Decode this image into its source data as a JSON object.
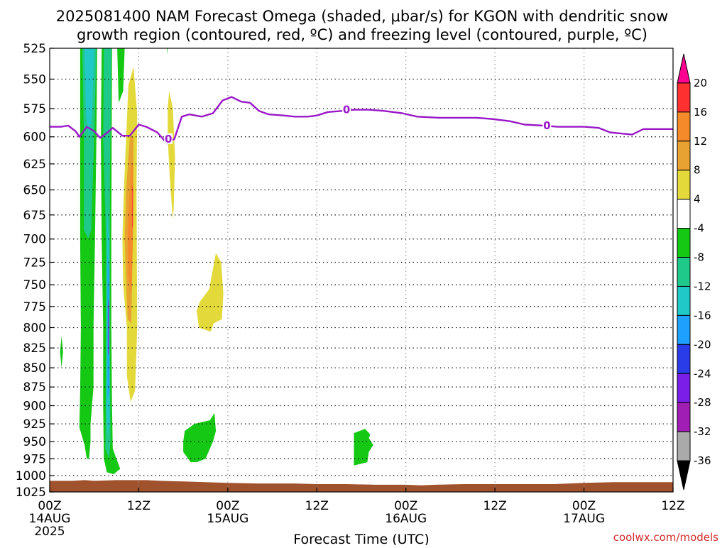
{
  "chart_data": {
    "type": "heatmap",
    "title": "2025081400 NAM Forecast Omega (shaded, μbar/s) for KGON with dendritic snow",
    "subtitle": "growth region (contoured, red, ºC) and freezing level (contoured, purple, ºC)",
    "xlabel": "Forecast Time (UTC)",
    "ylabel": "",
    "ylim": [
      1025,
      525
    ],
    "y_log": true,
    "grid": true,
    "x_hours_range": [
      0,
      84
    ],
    "x_ticks": [
      {
        "hour": 0,
        "label": "00Z",
        "date": "14AUG",
        "year": "2025"
      },
      {
        "hour": 12,
        "label": "12Z",
        "date": "",
        "year": ""
      },
      {
        "hour": 24,
        "label": "00Z",
        "date": "15AUG",
        "year": ""
      },
      {
        "hour": 36,
        "label": "12Z",
        "date": "",
        "year": ""
      },
      {
        "hour": 48,
        "label": "00Z",
        "date": "16AUG",
        "year": ""
      },
      {
        "hour": 60,
        "label": "12Z",
        "date": "",
        "year": ""
      },
      {
        "hour": 72,
        "label": "00Z",
        "date": "17AUG",
        "year": ""
      },
      {
        "hour": 84,
        "label": "12Z",
        "date": "",
        "year": ""
      }
    ],
    "y_ticks": [
      525,
      550,
      575,
      600,
      625,
      650,
      675,
      700,
      725,
      750,
      775,
      800,
      825,
      850,
      875,
      900,
      925,
      950,
      975,
      1000,
      1025
    ],
    "colorbar": {
      "levels": [
        20,
        16,
        12,
        8,
        4,
        -4,
        -8,
        -12,
        -16,
        -20,
        -24,
        -28,
        -32,
        -36
      ],
      "colors": [
        "#ff0090",
        "#ff3030",
        "#f58a2a",
        "#e8a232",
        "#e3d93a",
        "#ffffff",
        "#14c814",
        "#1fc98a",
        "#20c8c8",
        "#1ea0ff",
        "#2a3ce8",
        "#7a1ee8",
        "#a01eb4",
        "#aaaaaa",
        "#000000"
      ]
    },
    "freezing_level": {
      "label": "0",
      "color": "#9a18c8",
      "points": [
        [
          0,
          591
        ],
        [
          1.5,
          591
        ],
        [
          2.5,
          590
        ],
        [
          3.5,
          595
        ],
        [
          4,
          600
        ],
        [
          5,
          591
        ],
        [
          6,
          595
        ],
        [
          6.8,
          601
        ],
        [
          7.8,
          596
        ],
        [
          8.5,
          592
        ],
        [
          9.8,
          599
        ],
        [
          10.8,
          599
        ],
        [
          12,
          589
        ],
        [
          13,
          591
        ],
        [
          14.5,
          596
        ],
        [
          15.8,
          606
        ],
        [
          16.8,
          602
        ],
        [
          17.8,
          582
        ],
        [
          18.8,
          580
        ],
        [
          20.5,
          582
        ],
        [
          22,
          579
        ],
        [
          23.3,
          568
        ],
        [
          24.5,
          565
        ],
        [
          25.8,
          569
        ],
        [
          27,
          570
        ],
        [
          28.2,
          577
        ],
        [
          29.5,
          580
        ],
        [
          31.5,
          581
        ],
        [
          33,
          582
        ],
        [
          34.8,
          582
        ],
        [
          36,
          581
        ],
        [
          37.5,
          578
        ],
        [
          39.5,
          577
        ],
        [
          41,
          576
        ],
        [
          43,
          576
        ],
        [
          45,
          577
        ],
        [
          47.5,
          579
        ],
        [
          49.5,
          582
        ],
        [
          52.5,
          583
        ],
        [
          55,
          583
        ],
        [
          57.5,
          583
        ],
        [
          59.5,
          584
        ],
        [
          62,
          586
        ],
        [
          64,
          589
        ],
        [
          66.5,
          590
        ],
        [
          68.5,
          591
        ],
        [
          70.5,
          591
        ],
        [
          72,
          591
        ],
        [
          74,
          592
        ],
        [
          75.5,
          596
        ],
        [
          77,
          597
        ],
        [
          78.5,
          598
        ],
        [
          80,
          593
        ],
        [
          82,
          593
        ],
        [
          84,
          593
        ]
      ]
    },
    "regions": [
      {
        "level": -8,
        "color": "#14c814",
        "points": [
          [
            4.1,
            525
          ],
          [
            6.4,
            525
          ],
          [
            6.3,
            600
          ],
          [
            6.1,
            700
          ],
          [
            5.9,
            800
          ],
          [
            5.9,
            875
          ],
          [
            5.5,
            925
          ],
          [
            5.5,
            950
          ],
          [
            5.3,
            975
          ],
          [
            5.0,
            975
          ],
          [
            4.7,
            955
          ],
          [
            4.0,
            930
          ],
          [
            4.1,
            880
          ],
          [
            4.2,
            800
          ],
          [
            4.1,
            700
          ],
          [
            4.1,
            600
          ]
        ]
      },
      {
        "level": -12,
        "color": "#1fc98a",
        "points": [
          [
            4.4,
            525
          ],
          [
            6.3,
            525
          ],
          [
            6.0,
            600
          ],
          [
            5.6,
            690
          ],
          [
            5.2,
            700
          ],
          [
            4.6,
            690
          ],
          [
            4.6,
            600
          ]
        ]
      },
      {
        "level": -16,
        "color": "#20c8c8",
        "points": [
          [
            4.7,
            525
          ],
          [
            6.0,
            525
          ],
          [
            5.7,
            580
          ],
          [
            5.3,
            600
          ],
          [
            4.9,
            580
          ]
        ]
      },
      {
        "level": -8,
        "color": "#14c814",
        "points": [
          [
            7.0,
            525
          ],
          [
            8.4,
            525
          ],
          [
            8.3,
            700
          ],
          [
            8.3,
            800
          ],
          [
            8.4,
            900
          ],
          [
            8.5,
            960
          ],
          [
            9.5,
            990
          ],
          [
            8.6,
            998
          ],
          [
            7.7,
            995
          ],
          [
            7.3,
            975
          ],
          [
            7.2,
            900
          ],
          [
            7.2,
            800
          ],
          [
            7.0,
            700
          ],
          [
            6.9,
            600
          ]
        ]
      },
      {
        "level": -12,
        "color": "#1fc98a",
        "points": [
          [
            7.3,
            525
          ],
          [
            8.3,
            525
          ],
          [
            8.1,
            650
          ],
          [
            8.1,
            800
          ],
          [
            8.2,
            950
          ],
          [
            8.0,
            975
          ],
          [
            7.5,
            960
          ],
          [
            7.6,
            850
          ],
          [
            7.6,
            700
          ],
          [
            7.2,
            600
          ]
        ]
      },
      {
        "level": -16,
        "color": "#20c8c8",
        "points": [
          [
            7.7,
            670
          ],
          [
            8.0,
            700
          ],
          [
            8.0,
            800
          ],
          [
            8.1,
            925
          ],
          [
            7.8,
            940
          ],
          [
            7.6,
            900
          ],
          [
            7.7,
            800
          ]
        ]
      },
      {
        "level": -20,
        "color": "#1ea0ff",
        "points": [
          [
            7.8,
            715
          ],
          [
            8.0,
            740
          ],
          [
            8.0,
            880
          ],
          [
            7.8,
            890
          ],
          [
            7.8,
            800
          ]
        ]
      },
      {
        "level": -24,
        "color": "#7a1ee8",
        "points": [
          [
            7.85,
            765
          ],
          [
            7.95,
            775
          ],
          [
            7.95,
            830
          ],
          [
            7.85,
            835
          ]
        ]
      },
      {
        "level": -8,
        "color": "#14c814",
        "points": [
          [
            9.1,
            525
          ],
          [
            10.1,
            525
          ],
          [
            9.9,
            560
          ],
          [
            9.3,
            570
          ]
        ]
      },
      {
        "level": 4,
        "color": "#e3d93a",
        "points": [
          [
            10.6,
            555
          ],
          [
            11.3,
            540
          ],
          [
            11.8,
            580
          ],
          [
            11.7,
            650
          ],
          [
            11.8,
            800
          ],
          [
            11.5,
            880
          ],
          [
            10.9,
            895
          ],
          [
            10.4,
            860
          ],
          [
            10.4,
            800
          ],
          [
            9.9,
            750
          ],
          [
            9.8,
            700
          ],
          [
            10.0,
            650
          ],
          [
            10.3,
            600
          ]
        ]
      },
      {
        "level": 8,
        "color": "#e8a232",
        "points": [
          [
            10.8,
            600
          ],
          [
            11.3,
            600
          ],
          [
            11.2,
            700
          ],
          [
            11.0,
            795
          ],
          [
            10.5,
            790
          ],
          [
            10.1,
            700
          ],
          [
            10.3,
            650
          ]
        ]
      },
      {
        "level": 12,
        "color": "#f58a2a",
        "points": [
          [
            11.0,
            625
          ],
          [
            11.25,
            625
          ],
          [
            11.2,
            700
          ],
          [
            11.0,
            760
          ],
          [
            10.6,
            740
          ],
          [
            10.5,
            690
          ]
        ]
      },
      {
        "level": 16,
        "color": "#ff3030",
        "points": [
          [
            11.15,
            645
          ],
          [
            11.25,
            650
          ],
          [
            11.2,
            685
          ],
          [
            11.1,
            690
          ]
        ]
      },
      {
        "level": 4,
        "color": "#e3d93a",
        "points": [
          [
            16.1,
            560
          ],
          [
            16.6,
            575
          ],
          [
            16.9,
            620
          ],
          [
            16.7,
            670
          ],
          [
            16.6,
            680
          ],
          [
            16.2,
            640
          ],
          [
            15.9,
            600
          ],
          [
            15.9,
            575
          ]
        ]
      },
      {
        "level": -8,
        "color": "#14c814",
        "points": [
          [
            15.8,
            525
          ],
          [
            15.9,
            525
          ],
          [
            15.85,
            530
          ]
        ]
      },
      {
        "level": 4,
        "color": "#e3d93a",
        "points": [
          [
            21.5,
            755
          ],
          [
            22.4,
            715
          ],
          [
            23.1,
            725
          ],
          [
            23.4,
            760
          ],
          [
            23.2,
            790
          ],
          [
            22.1,
            795
          ],
          [
            21.7,
            805
          ],
          [
            20.1,
            800
          ],
          [
            19.8,
            780
          ],
          [
            20.2,
            770
          ]
        ]
      },
      {
        "level": -8,
        "color": "#14c814",
        "points": [
          [
            1.6,
            810
          ],
          [
            1.8,
            830
          ],
          [
            1.6,
            850
          ],
          [
            1.4,
            830
          ]
        ]
      },
      {
        "level": -8,
        "color": "#14c814",
        "points": [
          [
            18.2,
            935
          ],
          [
            19.5,
            925
          ],
          [
            21.6,
            920
          ],
          [
            22.2,
            910
          ],
          [
            22.4,
            935
          ],
          [
            22.0,
            950
          ],
          [
            21.0,
            975
          ],
          [
            19.8,
            980
          ],
          [
            19.0,
            980
          ],
          [
            18.0,
            965
          ],
          [
            18.0,
            950
          ]
        ]
      },
      {
        "level": -8,
        "color": "#14c814",
        "points": [
          [
            41.0,
            938
          ],
          [
            42.5,
            932
          ],
          [
            43.2,
            940
          ],
          [
            43.0,
            945
          ],
          [
            43.6,
            955
          ],
          [
            43.0,
            965
          ],
          [
            42.8,
            980
          ],
          [
            41.0,
            985
          ]
        ]
      }
    ],
    "terrain": {
      "color": "#a0522d",
      "points": [
        [
          0,
          1008
        ],
        [
          3,
          1008
        ],
        [
          4.7,
          1007
        ],
        [
          6,
          1008
        ],
        [
          9,
          1007
        ],
        [
          11,
          1007
        ],
        [
          13,
          1007
        ],
        [
          15,
          1008
        ],
        [
          18,
          1009
        ],
        [
          21,
          1010
        ],
        [
          24,
          1011
        ],
        [
          28,
          1012
        ],
        [
          33,
          1012
        ],
        [
          36,
          1013
        ],
        [
          40,
          1013
        ],
        [
          44,
          1014
        ],
        [
          48,
          1014
        ],
        [
          50,
          1015
        ],
        [
          52,
          1014
        ],
        [
          56,
          1013
        ],
        [
          60,
          1013
        ],
        [
          64,
          1013
        ],
        [
          68,
          1013
        ],
        [
          70,
          1012
        ],
        [
          72,
          1011
        ],
        [
          76,
          1010
        ],
        [
          80,
          1010
        ],
        [
          84,
          1010
        ]
      ]
    },
    "credit": "coolwx.com/models"
  }
}
